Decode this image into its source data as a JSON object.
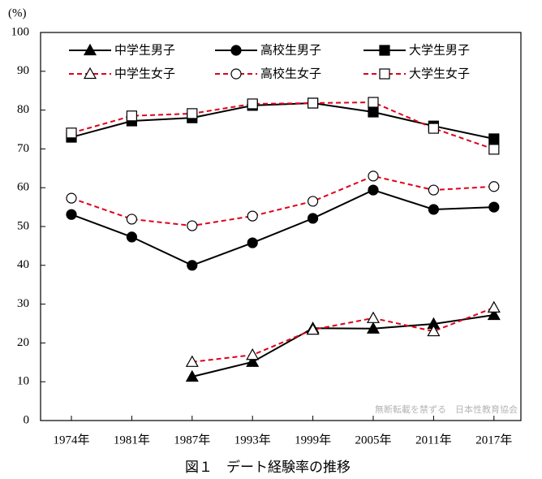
{
  "chart_data": {
    "type": "line",
    "title": "図１　デート経験率の推移",
    "y_label": "(%)",
    "watermark": "無断転載を禁ずる　日本性教育協会",
    "categories": [
      "1974年",
      "1981年",
      "1987年",
      "1993年",
      "1999年",
      "2005年",
      "2011年",
      "2017年"
    ],
    "ylim": [
      0,
      100
    ],
    "yticks": [
      0,
      10,
      20,
      30,
      40,
      50,
      60,
      70,
      80,
      90,
      100
    ],
    "legend": "top",
    "series": [
      {
        "name": "中学生男子",
        "color": "#000000",
        "linestyle": "solid",
        "marker": "triangle",
        "marker_fill": "#000000",
        "values": [
          null,
          null,
          11.3,
          15.1,
          23.8,
          23.7,
          24.9,
          27.2
        ]
      },
      {
        "name": "高校生男子",
        "color": "#000000",
        "linestyle": "solid",
        "marker": "circle",
        "marker_fill": "#000000",
        "values": [
          53.1,
          47.3,
          40.0,
          45.8,
          52.1,
          59.4,
          54.4,
          55.0
        ]
      },
      {
        "name": "大学生男子",
        "color": "#000000",
        "linestyle": "solid",
        "marker": "square",
        "marker_fill": "#000000",
        "values": [
          73.0,
          77.2,
          78.0,
          81.2,
          81.8,
          79.5,
          75.9,
          72.6
        ]
      },
      {
        "name": "中学生女子",
        "color": "#e0001a",
        "linestyle": "dashed",
        "marker": "triangle",
        "marker_fill": "#ffffff",
        "values": [
          null,
          null,
          15.1,
          16.9,
          23.4,
          26.4,
          23.0,
          29.1
        ]
      },
      {
        "name": "高校生女子",
        "color": "#e0001a",
        "linestyle": "dashed",
        "marker": "circle",
        "marker_fill": "#ffffff",
        "values": [
          57.3,
          51.9,
          50.2,
          52.7,
          56.5,
          63.0,
          59.4,
          60.3
        ]
      },
      {
        "name": "大学生女子",
        "color": "#e0001a",
        "linestyle": "dashed",
        "marker": "square",
        "marker_fill": "#ffffff",
        "values": [
          74.1,
          78.5,
          79.1,
          81.6,
          81.8,
          82.0,
          75.3,
          69.9
        ]
      }
    ]
  }
}
